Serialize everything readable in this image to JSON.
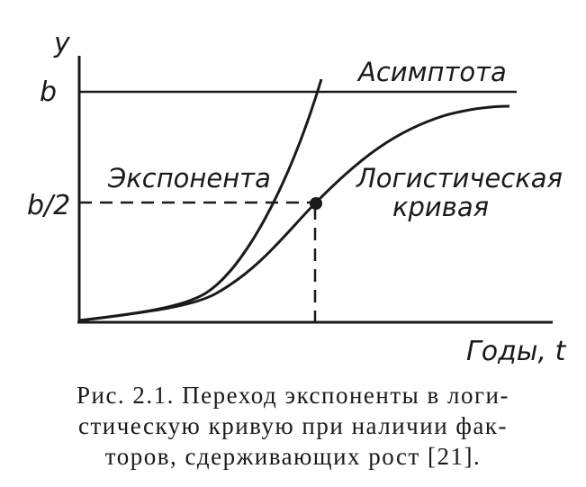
{
  "diagram": {
    "axes": {
      "y_label": "y",
      "x_label": "Годы, t",
      "tick_b": "b",
      "tick_half_b": "b/2"
    },
    "labels": {
      "asymptote": "Асимптота",
      "exponent": "Экспонента",
      "logistic_line1": "Логистическая",
      "logistic_line2": "кривая"
    }
  },
  "caption": {
    "line1": "Рис. 2.1. Переход экспоненты в логи-",
    "line2": "стическую кривую при наличии фак-",
    "line3": "торов, сдерживающих рост [21]."
  }
}
